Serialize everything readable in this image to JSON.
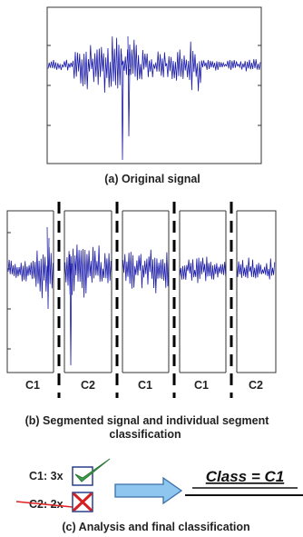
{
  "colors": {
    "signal": "#1a1aa8",
    "frame": "#333333",
    "dash": "#000000",
    "check": "#2e8b57",
    "cross": "#d62020",
    "strike": "#e0201e",
    "arrow_fill": "#8ec6f0",
    "arrow_stroke": "#3a6fa8"
  },
  "panel_a": {
    "caption": "(a) Original signal"
  },
  "panel_b": {
    "segments": [
      {
        "label": "C1"
      },
      {
        "label": "C2"
      },
      {
        "label": "C1"
      },
      {
        "label": "C1"
      },
      {
        "label": "C2"
      }
    ],
    "caption_line1": "(b) Segmented signal and individual segment",
    "caption_line2": "classification"
  },
  "panel_c": {
    "votes": [
      {
        "text": "C1: 3x",
        "icon": "check-icon",
        "winner": true
      },
      {
        "text": "C2: 2x",
        "icon": "cross-icon",
        "winner": false
      }
    ],
    "result": "Class = C1",
    "caption": "(c) Analysis and final classification"
  }
}
